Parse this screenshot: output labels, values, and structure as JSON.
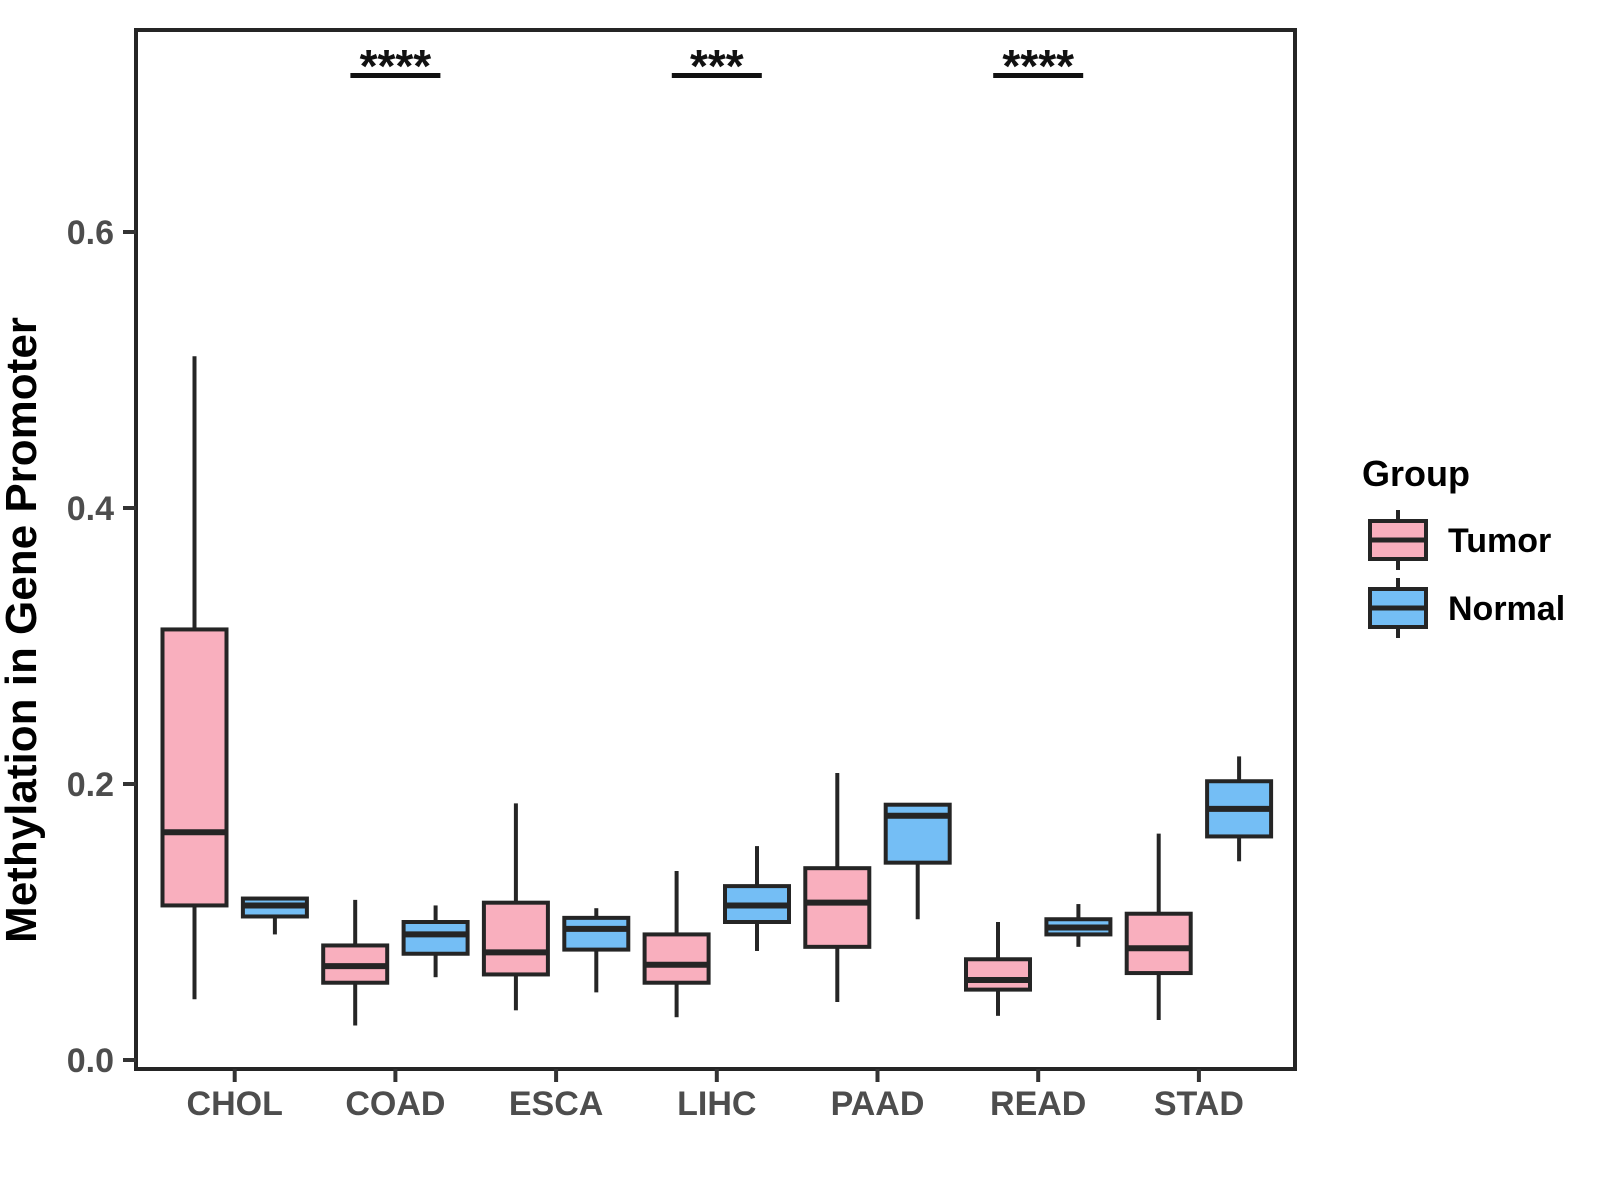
{
  "figure": {
    "background": "#FFFFFF"
  },
  "chart_data": {
    "type": "boxplot",
    "title": "",
    "xlabel": "",
    "ylabel": "Methylation in Gene Promoter",
    "categories": [
      "CHOL",
      "COAD",
      "ESCA",
      "LIHC",
      "PAAD",
      "READ",
      "STAD"
    ],
    "y_ticks_labels": [
      "0.0",
      "0.2",
      "0.4",
      "0.6"
    ],
    "y_tick_values": [
      0.0,
      0.2,
      0.4,
      0.6
    ],
    "ylim": [
      -0.007,
      0.747
    ],
    "grid": false,
    "legend": {
      "title": "Group",
      "position": "right",
      "entries": [
        {
          "label": "Tumor",
          "color": "#F9AFBE"
        },
        {
          "label": "Normal",
          "color": "#74BEF5"
        }
      ]
    },
    "series": [
      {
        "name": "Tumor",
        "color": "#F9AFBE",
        "boxes": [
          {
            "category": "CHOL",
            "whisker_low": 0.044,
            "q1": 0.112,
            "median": 0.165,
            "q3": 0.312,
            "whisker_high": 0.51
          },
          {
            "category": "COAD",
            "whisker_low": 0.025,
            "q1": 0.056,
            "median": 0.068,
            "q3": 0.083,
            "whisker_high": 0.116
          },
          {
            "category": "ESCA",
            "whisker_low": 0.036,
            "q1": 0.062,
            "median": 0.078,
            "q3": 0.114,
            "whisker_high": 0.186
          },
          {
            "category": "LIHC",
            "whisker_low": 0.031,
            "q1": 0.056,
            "median": 0.069,
            "q3": 0.091,
            "whisker_high": 0.137
          },
          {
            "category": "PAAD",
            "whisker_low": 0.042,
            "q1": 0.082,
            "median": 0.114,
            "q3": 0.139,
            "whisker_high": 0.208
          },
          {
            "category": "READ",
            "whisker_low": 0.032,
            "q1": 0.051,
            "median": 0.058,
            "q3": 0.073,
            "whisker_high": 0.1
          },
          {
            "category": "STAD",
            "whisker_low": 0.029,
            "q1": 0.063,
            "median": 0.081,
            "q3": 0.106,
            "whisker_high": 0.164
          }
        ]
      },
      {
        "name": "Normal",
        "color": "#74BEF5",
        "boxes": [
          {
            "category": "CHOL",
            "whisker_low": 0.091,
            "q1": 0.104,
            "median": 0.112,
            "q3": 0.117,
            "whisker_high": 0.117
          },
          {
            "category": "COAD",
            "whisker_low": 0.06,
            "q1": 0.077,
            "median": 0.091,
            "q3": 0.1,
            "whisker_high": 0.112
          },
          {
            "category": "ESCA",
            "whisker_low": 0.049,
            "q1": 0.08,
            "median": 0.095,
            "q3": 0.103,
            "whisker_high": 0.11
          },
          {
            "category": "LIHC",
            "whisker_low": 0.079,
            "q1": 0.1,
            "median": 0.112,
            "q3": 0.126,
            "whisker_high": 0.155
          },
          {
            "category": "PAAD",
            "whisker_low": 0.102,
            "q1": 0.143,
            "median": 0.177,
            "q3": 0.185,
            "whisker_high": 0.185
          },
          {
            "category": "READ",
            "whisker_low": 0.082,
            "q1": 0.091,
            "median": 0.096,
            "q3": 0.102,
            "whisker_high": 0.113
          },
          {
            "category": "STAD",
            "whisker_low": 0.144,
            "q1": 0.162,
            "median": 0.182,
            "q3": 0.202,
            "whisker_high": 0.22
          }
        ]
      }
    ],
    "significance": [
      {
        "category": "COAD",
        "label": "****"
      },
      {
        "category": "LIHC",
        "label": "***"
      },
      {
        "category": "READ",
        "label": "****"
      }
    ],
    "styles": {
      "box_stroke": "#252525",
      "panel_border": "#252525",
      "tick_color": "#333333",
      "tick_label_color": "#4D4D4D",
      "axis_title_color": "#000000",
      "significance_color": "#111111",
      "legend_text_color": "#000000"
    }
  }
}
